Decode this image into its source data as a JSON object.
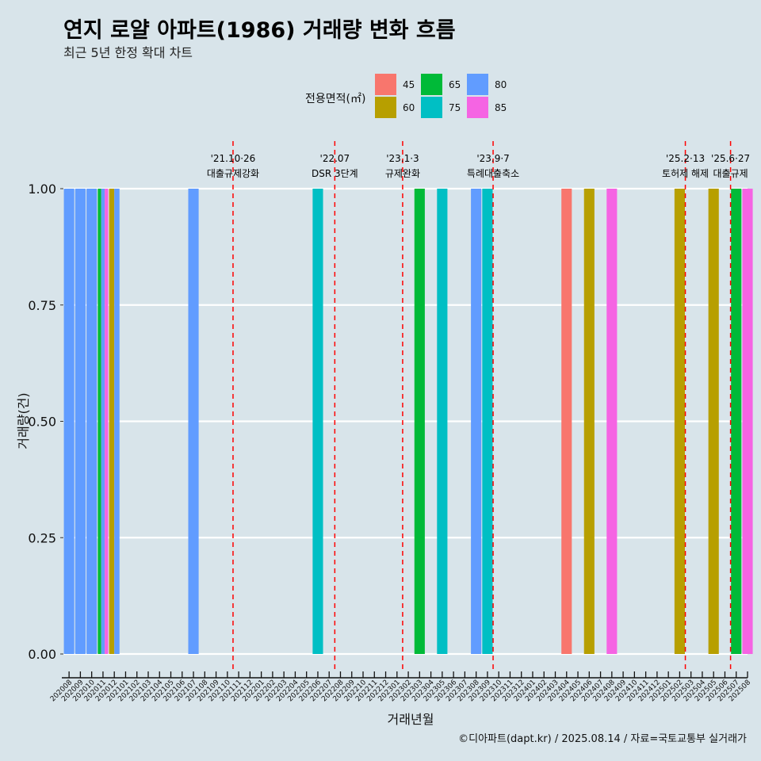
{
  "title": "연지 로얄 아파트(1986) 거래량 변화 흐름",
  "subtitle": "최근 5년 한정 확대 차트",
  "caption": "©디아파트(dapt.kr) / 2025.08.14 / 자료=국토교통부 실거래가",
  "chart_data": {
    "type": "bar",
    "xlabel": "거래년월",
    "ylabel": "거래량(건)",
    "ylim": [
      0,
      1
    ],
    "yticks": [
      "0.00",
      "0.25",
      "0.50",
      "0.75",
      "1.00"
    ],
    "grid": true,
    "legend": {
      "title": "전용면적(㎡)",
      "position": "top",
      "items": [
        {
          "name": "45",
          "color": "#f8766d"
        },
        {
          "name": "60",
          "color": "#b79f00"
        },
        {
          "name": "65",
          "color": "#00ba38"
        },
        {
          "name": "75",
          "color": "#00bfc4"
        },
        {
          "name": "80",
          "color": "#619cff"
        },
        {
          "name": "85",
          "color": "#f564e3"
        }
      ]
    },
    "categories": [
      "202008",
      "202009",
      "202010",
      "202011",
      "202012",
      "202101",
      "202102",
      "202103",
      "202104",
      "202105",
      "202106",
      "202107",
      "202108",
      "202109",
      "202110",
      "202111",
      "202112",
      "202201",
      "202202",
      "202203",
      "202204",
      "202205",
      "202206",
      "202207",
      "202208",
      "202209",
      "202210",
      "202211",
      "202212",
      "202301",
      "202302",
      "202303",
      "202304",
      "202305",
      "202306",
      "202307",
      "202308",
      "202309",
      "202310",
      "202311",
      "202312",
      "202401",
      "202402",
      "202403",
      "202404",
      "202405",
      "202406",
      "202407",
      "202408",
      "202409",
      "202410",
      "202411",
      "202412",
      "202501",
      "202502",
      "202503",
      "202504",
      "202505",
      "202506",
      "202507",
      "202508"
    ],
    "bars": [
      {
        "month": "202008",
        "segments": [
          {
            "area": "80",
            "value": 1
          }
        ]
      },
      {
        "month": "202009",
        "segments": [
          {
            "area": "80",
            "value": 1
          }
        ]
      },
      {
        "month": "202010",
        "segments": [
          {
            "area": "80",
            "value": 1
          }
        ]
      },
      {
        "month": "202011",
        "segments": [
          {
            "area": "65",
            "value": 1
          },
          {
            "area": "80",
            "value": 1
          },
          {
            "area": "85",
            "value": 1
          }
        ]
      },
      {
        "month": "202012",
        "segments": [
          {
            "area": "60",
            "value": 1
          },
          {
            "area": "80",
            "value": 1
          }
        ]
      },
      {
        "month": "202107",
        "segments": [
          {
            "area": "80",
            "value": 1
          }
        ]
      },
      {
        "month": "202206",
        "segments": [
          {
            "area": "75",
            "value": 1
          }
        ]
      },
      {
        "month": "202303",
        "segments": [
          {
            "area": "65",
            "value": 1
          }
        ]
      },
      {
        "month": "202305",
        "segments": [
          {
            "area": "75",
            "value": 1
          }
        ]
      },
      {
        "month": "202308",
        "segments": [
          {
            "area": "80",
            "value": 1
          }
        ]
      },
      {
        "month": "202309",
        "segments": [
          {
            "area": "75",
            "value": 1
          }
        ]
      },
      {
        "month": "202404",
        "segments": [
          {
            "area": "45",
            "value": 1
          }
        ]
      },
      {
        "month": "202406",
        "segments": [
          {
            "area": "60",
            "value": 1
          }
        ]
      },
      {
        "month": "202408",
        "segments": [
          {
            "area": "85",
            "value": 1
          }
        ]
      },
      {
        "month": "202502",
        "segments": [
          {
            "area": "60",
            "value": 1
          }
        ]
      },
      {
        "month": "202505",
        "segments": [
          {
            "area": "60",
            "value": 1
          }
        ]
      },
      {
        "month": "202507",
        "segments": [
          {
            "area": "65",
            "value": 1
          }
        ]
      },
      {
        "month": "202508",
        "segments": [
          {
            "area": "85",
            "value": 1
          }
        ]
      }
    ],
    "events": [
      {
        "month_pos": 14.5,
        "date": "'21.10·26",
        "label": "대출규제강화"
      },
      {
        "month_pos": 23.5,
        "date": "'22.07",
        "label": "DSR 3단계"
      },
      {
        "month_pos": 29.5,
        "date": "'23.1·3",
        "label": "규제완화"
      },
      {
        "month_pos": 37.5,
        "date": "'23.9·7",
        "label": "특례대출축소"
      },
      {
        "month_pos": 54.5,
        "date": "'25.2·13",
        "label": "토허제 해제"
      },
      {
        "month_pos": 58.5,
        "date": "'25.6·27",
        "label": "대출규제"
      }
    ]
  }
}
